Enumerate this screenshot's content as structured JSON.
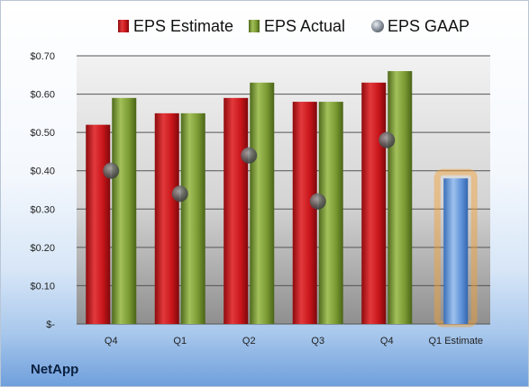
{
  "brand": "NetApp",
  "chart_data": {
    "type": "bar",
    "categories": [
      "Q4",
      "Q1",
      "Q2",
      "Q3",
      "Q4",
      "Q1 Estimate"
    ],
    "y_tick_labels": [
      "$-",
      "$0.10",
      "$0.20",
      "$0.30",
      "$0.40",
      "$0.50",
      "$0.60",
      "$0.70"
    ],
    "ylim": [
      0,
      0.7
    ],
    "grid": true,
    "legend_position": "top",
    "series": [
      {
        "name": "EPS Estimate",
        "type": "bar",
        "color": "#c8161b",
        "values": [
          0.52,
          0.55,
          0.59,
          0.58,
          0.63,
          null
        ]
      },
      {
        "name": "EPS Actual",
        "type": "bar",
        "color": "#7a9a32",
        "values": [
          0.59,
          0.55,
          0.63,
          0.58,
          0.66,
          null
        ]
      },
      {
        "name": "EPS GAAP",
        "type": "scatter",
        "color": "#9aa3ad",
        "values": [
          0.4,
          0.34,
          0.44,
          0.32,
          0.48,
          null
        ]
      },
      {
        "name": "",
        "type": "bar",
        "color": "#5b8fd6",
        "highlight": "#f5a030",
        "values": [
          null,
          null,
          null,
          null,
          null,
          0.38
        ]
      }
    ]
  }
}
